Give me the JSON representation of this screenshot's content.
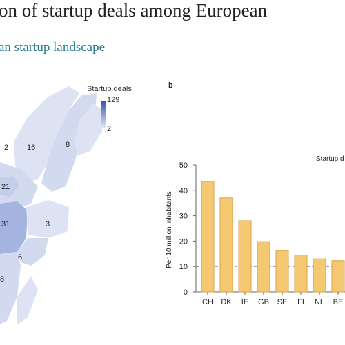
{
  "header": {
    "title": "on of startup deals among European",
    "subtitle": "an startup landscape"
  },
  "panel_b_label": "b",
  "map": {
    "legend_title": "Startup deals",
    "legend_max": "129",
    "legend_min": "2",
    "region_labels": [
      "2",
      "16",
      "8",
      "21",
      "31",
      "3",
      "6",
      "8"
    ],
    "colors": {
      "light": "#dde3f3",
      "mid": "#c4cdeb",
      "dark": "#a5b3df"
    }
  },
  "bar_legend_text": "Startup d",
  "chart_data": {
    "type": "bar",
    "categories": [
      "CH",
      "DK",
      "IE",
      "GB",
      "SE",
      "FI",
      "NL",
      "BE"
    ],
    "values": [
      43.5,
      37,
      28,
      19.8,
      16.3,
      14.5,
      13,
      12.3
    ],
    "ylabel": "Per 10 million inhabitants",
    "ylim": [
      0,
      50
    ],
    "yticks": [
      0,
      10,
      20,
      30,
      40,
      50
    ],
    "reference_line": 10,
    "bar_color": "#f5c872",
    "bar_edge_color": "#d9a24a"
  }
}
